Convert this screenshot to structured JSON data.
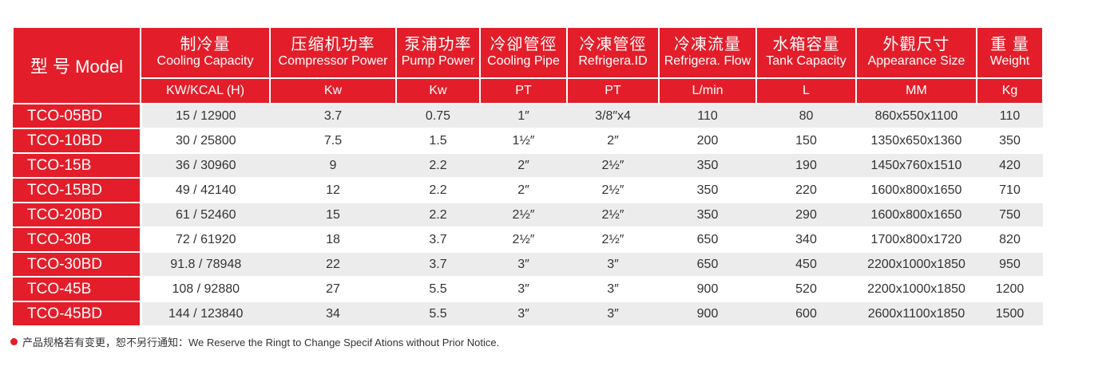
{
  "header": {
    "model": "型 号 Model",
    "columns": [
      {
        "cn": "制冷量",
        "en": "Cooling Capacity",
        "unit": "KW/KCAL (H)"
      },
      {
        "cn": "压缩机功率",
        "en": "Compressor Power",
        "unit": "Kw"
      },
      {
        "cn": "泵浦功率",
        "en": "Pump Power",
        "unit": "Kw"
      },
      {
        "cn": "冷卻管徑",
        "en": "Cooling Pipe",
        "unit": "PT"
      },
      {
        "cn": "冷凍管徑",
        "en": "Refrigera.ID",
        "unit": "PT"
      },
      {
        "cn": "冷凍流量",
        "en": "Refrigera. Flow",
        "unit": "L/min"
      },
      {
        "cn": "水箱容量",
        "en": "Tank Capacity",
        "unit": "L"
      },
      {
        "cn": "外觀尺寸",
        "en": "Appearance Size",
        "unit": "MM"
      },
      {
        "cn": "重 量",
        "en": "Weight",
        "unit": "Kg"
      }
    ]
  },
  "rows": [
    [
      "TCO-05BD",
      "15 / 12900",
      "3.7",
      "0.75",
      "1″",
      "3/8″x4",
      "110",
      "80",
      "860x550x1100",
      "110"
    ],
    [
      "TCO-10BD",
      "30 / 25800",
      "7.5",
      "1.5",
      "1½″",
      "2″",
      "200",
      "150",
      "1350x650x1360",
      "350"
    ],
    [
      "TCO-15B",
      "36 / 30960",
      "9",
      "2.2",
      "2″",
      "2½″",
      "350",
      "190",
      "1450x760x1510",
      "420"
    ],
    [
      "TCO-15BD",
      "49 / 42140",
      "12",
      "2.2",
      "2″",
      "2½″",
      "350",
      "220",
      "1600x800x1650",
      "710"
    ],
    [
      "TCO-20BD",
      "61 / 52460",
      "15",
      "2.2",
      "2½″",
      "2½″",
      "350",
      "290",
      "1600x800x1650",
      "750"
    ],
    [
      "TCO-30B",
      "72 / 61920",
      "18",
      "3.7",
      "2½″",
      "2½″",
      "650",
      "340",
      "1700x800x1720",
      "820"
    ],
    [
      "TCO-30BD",
      "91.8 / 78948",
      "22",
      "3.7",
      "3″",
      "3″",
      "650",
      "450",
      "2200x1000x1850",
      "950"
    ],
    [
      "TCO-45B",
      "108 / 92880",
      "27",
      "5.5",
      "3″",
      "3″",
      "900",
      "520",
      "2200x1000x1850",
      "1200"
    ],
    [
      "TCO-45BD",
      "144 / 123840",
      "34",
      "5.5",
      "3″",
      "3″",
      "900",
      "600",
      "2600x1100x1850",
      "1500"
    ]
  ],
  "note": "产品规格若有变更，恕不另行通知：We Reserve the Ringt to Change Specif Ations without Prior Notice.",
  "colors": {
    "accent": "#e31e2a",
    "stripe": "#ececec"
  }
}
